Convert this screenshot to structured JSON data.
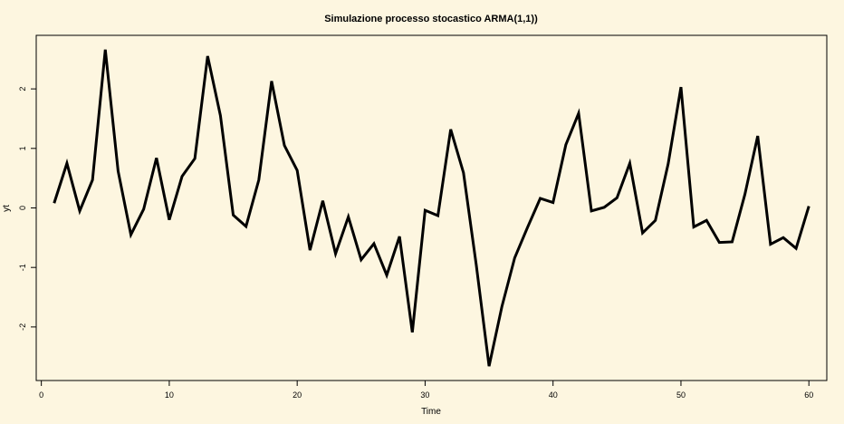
{
  "chart_data": {
    "type": "line",
    "title": "Simulazione processo stocastico ARMA(1,1))",
    "xlabel": "Time",
    "ylabel": "yt",
    "xlim": [
      -0.4,
      61.4
    ],
    "ylim": [
      -2.9,
      2.9
    ],
    "xticks": [
      0,
      10,
      20,
      30,
      40,
      50,
      60
    ],
    "yticks": [
      -2,
      -1,
      0,
      1,
      2
    ],
    "grid": false,
    "series": [
      {
        "x": [
          1,
          2,
          3,
          4,
          5,
          6,
          7,
          8,
          9,
          10,
          11,
          12,
          13,
          14,
          15,
          16,
          17,
          18,
          19,
          20,
          21,
          22,
          23,
          24,
          25,
          26,
          27,
          28,
          29,
          30,
          31,
          32,
          33,
          34,
          35,
          36,
          37,
          38,
          39,
          40,
          41,
          42,
          43,
          44,
          45,
          46,
          47,
          48,
          49,
          50,
          51,
          52,
          53,
          54,
          55,
          56,
          57,
          58,
          59,
          60
        ],
        "values": [
          0.08,
          0.75,
          -0.05,
          0.47,
          2.66,
          0.62,
          -0.45,
          -0.02,
          0.84,
          -0.2,
          0.53,
          0.83,
          2.55,
          1.55,
          -0.12,
          -0.31,
          0.47,
          2.13,
          1.05,
          0.63,
          -0.71,
          0.12,
          -0.77,
          -0.15,
          -0.87,
          -0.6,
          -1.13,
          -0.48,
          -2.09,
          -0.04,
          -0.13,
          1.32,
          0.59,
          -0.96,
          -2.66,
          -1.66,
          -0.84,
          -0.33,
          0.16,
          0.09,
          1.06,
          1.59,
          -0.05,
          0.01,
          0.17,
          0.75,
          -0.42,
          -0.21,
          0.74,
          2.03,
          -0.32,
          -0.21,
          -0.58,
          -0.57,
          0.23,
          1.21,
          -0.61,
          -0.5,
          -0.68,
          0.03
        ]
      }
    ]
  }
}
